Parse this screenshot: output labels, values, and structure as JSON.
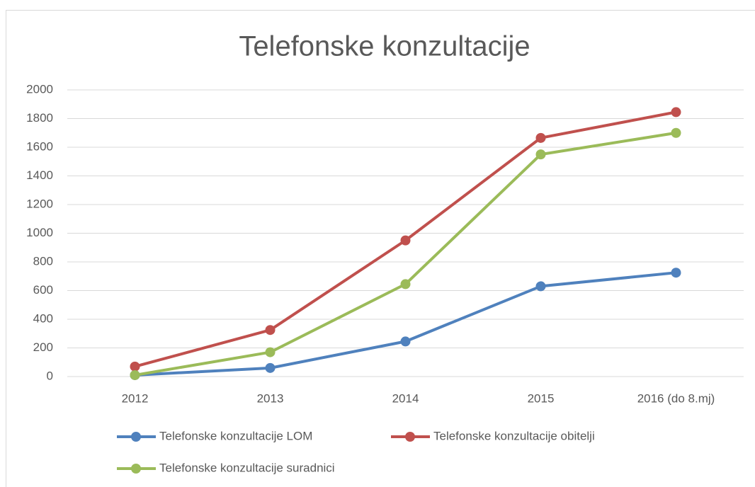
{
  "chart_data": {
    "type": "line",
    "title": "Telefonske konzultacije",
    "categories": [
      "2012",
      "2013",
      "2014",
      "2015",
      "2016 (do 8.mj)"
    ],
    "series": [
      {
        "name": "Telefonske konzultacije LOM",
        "color": "#4f81bd",
        "values": [
          10,
          60,
          245,
          630,
          725
        ]
      },
      {
        "name": "Telefonske konzultacije obitelji",
        "color": "#c0504d",
        "values": [
          70,
          325,
          950,
          1665,
          1845
        ]
      },
      {
        "name": "Telefonske konzultacije suradnici",
        "color": "#9bbb59",
        "values": [
          10,
          170,
          645,
          1550,
          1700
        ]
      }
    ],
    "ylim": [
      0,
      2000
    ],
    "yticks": [
      0,
      200,
      400,
      600,
      800,
      1000,
      1200,
      1400,
      1600,
      1800,
      2000
    ],
    "grid": true
  }
}
